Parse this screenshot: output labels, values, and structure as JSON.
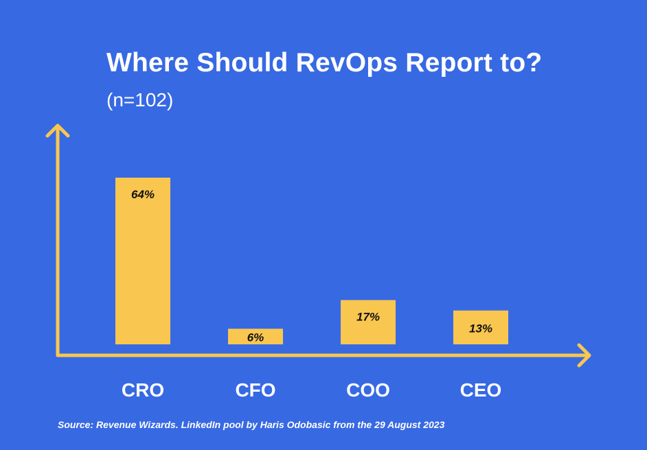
{
  "chart_data": {
    "type": "bar",
    "title": "Where Should RevOps Report to?",
    "subtitle": "(n=102)",
    "categories": [
      "CRO",
      "CFO",
      "COO",
      "CEO"
    ],
    "values": [
      64,
      6,
      17,
      13
    ],
    "data_labels": [
      "64%",
      "6%",
      "17%",
      "13%"
    ],
    "ylim": [
      0,
      100
    ],
    "grid": false,
    "legend": "none",
    "source": "Source: Revenue Wizards. LinkedIn pool by Haris Odobasic from the 29 August 2023"
  },
  "colors": {
    "background": "#3769E3",
    "bar": "#F9C74F",
    "axis": "#F9C74F",
    "text": "#FFFFFF",
    "label_text": "#111111"
  }
}
